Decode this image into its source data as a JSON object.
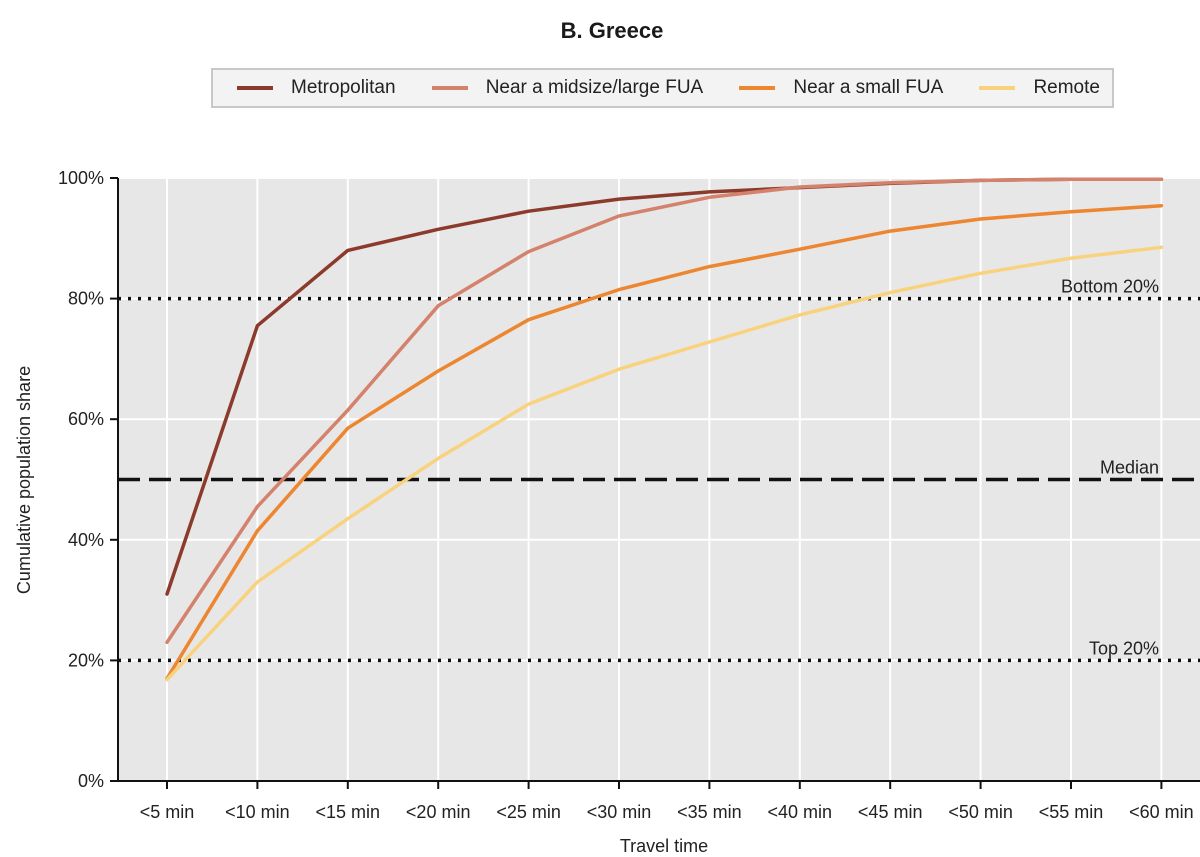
{
  "chart_data": {
    "type": "line",
    "title": "B. Greece",
    "xlabel": "Travel time",
    "ylabel": "Cumulative population share",
    "categories": [
      "<5 min",
      "<10 min",
      "<15 min",
      "<20 min",
      "<25 min",
      "<30 min",
      "<35 min",
      "<40 min",
      "<45 min",
      "<50 min",
      "<55 min",
      "<60 min"
    ],
    "yticks": [
      "0%",
      "20%",
      "40%",
      "60%",
      "80%",
      "100%"
    ],
    "ylim": [
      0,
      100
    ],
    "grid": true,
    "legend_position": "top",
    "series": [
      {
        "name": "Metropolitan",
        "color": "#8b3a2b",
        "values": [
          31,
          75.5,
          88,
          91.5,
          94.5,
          96.5,
          97.7,
          98.4,
          99.1,
          99.6,
          99.8,
          99.8
        ]
      },
      {
        "name": "Near a midsize/large FUA",
        "color": "#d4826c",
        "values": [
          23,
          45.5,
          61.5,
          78.8,
          87.8,
          93.7,
          96.8,
          98.5,
          99.2,
          99.6,
          99.8,
          99.8
        ]
      },
      {
        "name": "Near a small FUA",
        "color": "#ec8630",
        "values": [
          17,
          41.5,
          58.5,
          68,
          76.5,
          81.5,
          85.3,
          88.2,
          91.2,
          93.2,
          94.4,
          95.4
        ]
      },
      {
        "name": "Remote",
        "color": "#f9d27e",
        "values": [
          16.8,
          33,
          43.5,
          53.5,
          62.5,
          68.3,
          72.8,
          77.3,
          81,
          84.2,
          86.7,
          88.5
        ]
      }
    ],
    "reference_lines": [
      {
        "label": "Bottom 20%",
        "value": 80,
        "style": "dotted"
      },
      {
        "label": "Median",
        "value": 50,
        "style": "dashed"
      },
      {
        "label": "Top 20%",
        "value": 20,
        "style": "dotted"
      }
    ]
  }
}
